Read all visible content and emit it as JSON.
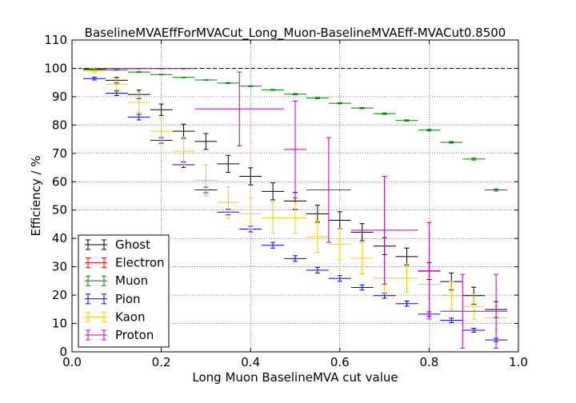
{
  "chart_data": {
    "type": "scatter",
    "title": "BaselineMVAEffForMVACut_Long_Muon-BaselineMVAEff-MVACut0.8500",
    "xlabel": "Long Muon BaselineMVA cut value",
    "ylabel": "Efficiency / %",
    "xlim": [
      0.0,
      1.0
    ],
    "ylim": [
      0,
      110
    ],
    "xticks": [
      "0.0",
      "0.2",
      "0.4",
      "0.6",
      "0.8",
      "1.0"
    ],
    "yticks": [
      "0",
      "10",
      "20",
      "30",
      "40",
      "50",
      "60",
      "70",
      "80",
      "90",
      "100",
      "110"
    ],
    "grid": true,
    "reference_line_y": 100,
    "legend_position": "lower-left",
    "series": [
      {
        "name": "Ghost",
        "color": "#000000",
        "x": [
          0.05,
          0.1,
          0.15,
          0.2,
          0.25,
          0.3,
          0.35,
          0.4,
          0.45,
          0.5,
          0.55,
          0.6,
          0.65,
          0.7,
          0.75,
          0.8,
          0.85,
          0.9,
          0.95
        ],
        "xerr": 0.025,
        "y": [
          99.6,
          95.8,
          90.8,
          85.4,
          77.8,
          74.2,
          66.3,
          61.9,
          56.6,
          53.2,
          48.7,
          46.4,
          42.2,
          37.3,
          33.6,
          28.5,
          24.8,
          19.8,
          14.9
        ],
        "yerr": [
          0.4,
          1.0,
          1.5,
          2.0,
          2.5,
          2.8,
          3.0,
          3.0,
          3.0,
          3.0,
          3.0,
          3.0,
          3.0,
          3.0,
          3.0,
          3.0,
          3.0,
          3.0,
          2.8
        ]
      },
      {
        "name": "Electron",
        "color": "#ff0000",
        "x": [],
        "xerr": 0.025,
        "y": [],
        "yerr": []
      },
      {
        "name": "Muon",
        "color": "#008000",
        "x": [
          0.05,
          0.1,
          0.15,
          0.2,
          0.25,
          0.3,
          0.35,
          0.4,
          0.45,
          0.5,
          0.55,
          0.6,
          0.65,
          0.7,
          0.75,
          0.8,
          0.85,
          0.9,
          0.95
        ],
        "xerr": 0.025,
        "y": [
          99.8,
          99.4,
          98.7,
          97.8,
          96.8,
          95.9,
          94.8,
          93.7,
          92.4,
          90.9,
          89.5,
          87.7,
          86.0,
          84.0,
          81.6,
          78.2,
          73.9,
          68.0,
          57.1
        ],
        "yerr": [
          0.05,
          0.05,
          0.1,
          0.1,
          0.1,
          0.1,
          0.15,
          0.15,
          0.15,
          0.2,
          0.2,
          0.2,
          0.2,
          0.25,
          0.25,
          0.3,
          0.3,
          0.35,
          0.4
        ]
      },
      {
        "name": "Pion",
        "color": "#0000ff",
        "x": [
          0.05,
          0.1,
          0.15,
          0.2,
          0.25,
          0.3,
          0.35,
          0.4,
          0.45,
          0.5,
          0.55,
          0.6,
          0.65,
          0.7,
          0.75,
          0.8,
          0.85,
          0.9,
          0.95
        ],
        "xerr": 0.025,
        "y": [
          96.4,
          91.2,
          82.8,
          74.6,
          66.0,
          57.1,
          49.3,
          43.3,
          37.6,
          32.9,
          28.8,
          25.9,
          22.7,
          19.8,
          17.0,
          13.3,
          11.1,
          7.6,
          4.2
        ],
        "yerr": [
          0.5,
          0.8,
          1.0,
          1.0,
          1.0,
          1.0,
          1.0,
          1.0,
          1.0,
          1.0,
          1.0,
          1.0,
          0.9,
          0.9,
          0.9,
          0.8,
          0.8,
          0.7,
          0.6
        ]
      },
      {
        "name": "Kaon",
        "color": "#ffcc00",
        "x": [
          0.05,
          0.1,
          0.15,
          0.2,
          0.25,
          0.3,
          0.35,
          0.4,
          0.45,
          0.5,
          0.55,
          0.6,
          0.65,
          0.7,
          0.75,
          0.8,
          0.85,
          0.9,
          0.95
        ],
        "xerr": 0.025,
        "y": [
          99.2,
          94.4,
          88.0,
          77.8,
          70.8,
          60.5,
          52.7,
          48.7,
          47.3,
          47.3,
          40.6,
          38.0,
          33.0,
          26.0,
          26.0,
          23.8,
          19.8,
          16.0,
          11.9
        ],
        "yerr": [
          0.8,
          2.0,
          3.5,
          4.5,
          5.0,
          5.5,
          5.5,
          5.5,
          5.5,
          5.5,
          5.5,
          5.5,
          5.5,
          5.5,
          5.0,
          5.0,
          5.0,
          4.5,
          4.0
        ]
      },
      {
        "name": "Proton",
        "color": "#bf00bf",
        "x": [
          0.1,
          0.15,
          0.2,
          0.25,
          0.375,
          0.5,
          0.575,
          0.7,
          0.8,
          0.875,
          0.95
        ],
        "xerr": [
          0.05,
          0.025,
          0.025,
          0.025,
          0.1,
          0.025,
          0.05,
          0.075,
          0.025,
          0.05,
          0.025
        ],
        "y": [
          99.9,
          99.9,
          99.9,
          99.9,
          85.7,
          71.4,
          57.1,
          42.9,
          28.6,
          14.3,
          14.3
        ],
        "yerr": [
          0.1,
          0.1,
          0.1,
          0.1,
          13.0,
          17.0,
          18.5,
          19.0,
          17.0,
          13.0,
          13.0
        ]
      }
    ]
  }
}
